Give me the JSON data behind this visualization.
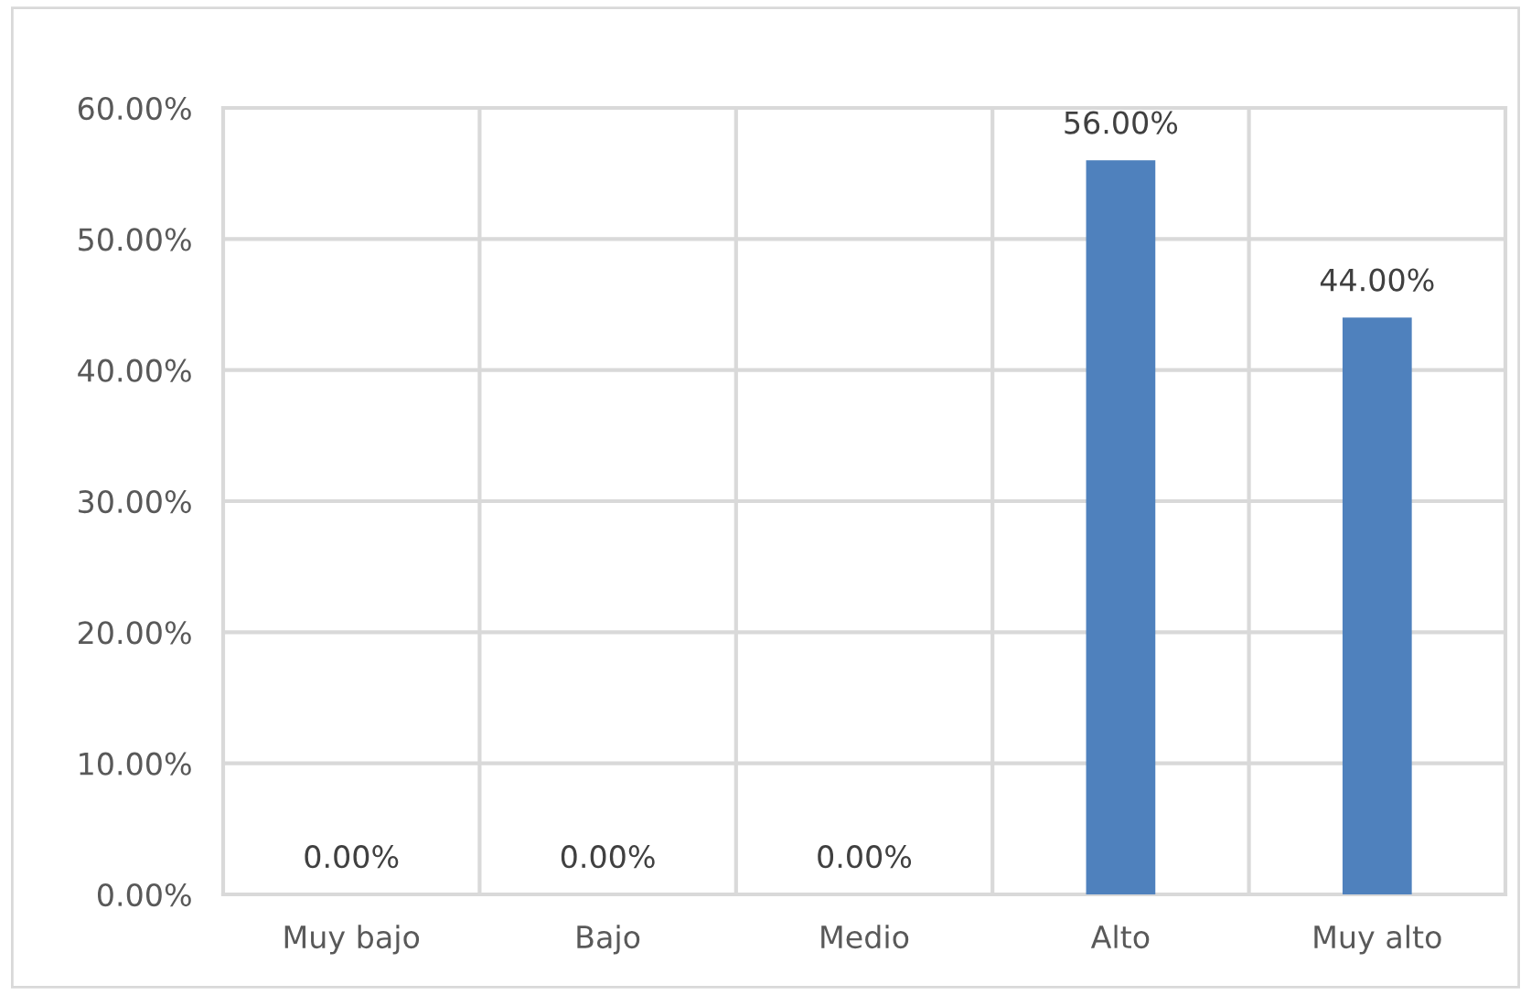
{
  "chart_data": {
    "type": "bar",
    "categories": [
      "Muy bajo",
      "Bajo",
      "Medio",
      "Alto",
      "Muy alto"
    ],
    "values": [
      0,
      0,
      0,
      56,
      44
    ],
    "color": "#4f81bd",
    "value_labels": [
      "0.00%",
      "0.00%",
      "0.00%",
      "56.00%",
      "44.00%"
    ],
    "ylim": [
      0,
      60
    ],
    "yticks": [
      {
        "value": 0,
        "label": "0.00%"
      },
      {
        "value": 10,
        "label": "10.00%"
      },
      {
        "value": 20,
        "label": "20.00%"
      },
      {
        "value": 30,
        "label": "30.00%"
      },
      {
        "value": 40,
        "label": "40.00%"
      },
      {
        "value": 50,
        "label": "50.00%"
      },
      {
        "value": 60,
        "label": "60.00%"
      }
    ],
    "grid": true
  }
}
